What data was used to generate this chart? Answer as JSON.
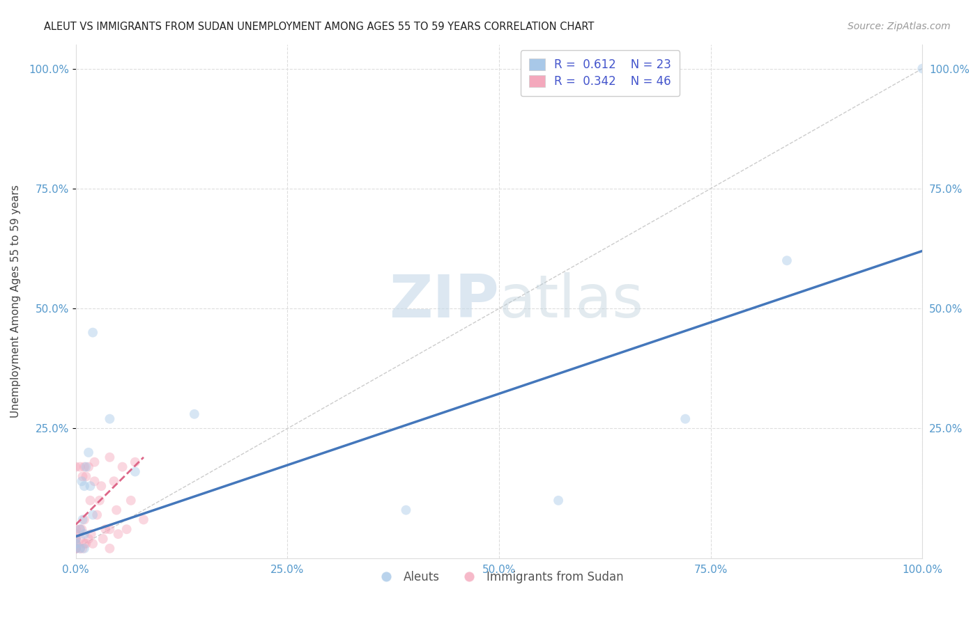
{
  "title": "ALEUT VS IMMIGRANTS FROM SUDAN UNEMPLOYMENT AMONG AGES 55 TO 59 YEARS CORRELATION CHART",
  "source": "Source: ZipAtlas.com",
  "ylabel": "Unemployment Among Ages 55 to 59 years",
  "aleut_R": 0.612,
  "aleut_N": 23,
  "sudan_R": 0.342,
  "sudan_N": 46,
  "aleut_color": "#a8c8e8",
  "sudan_color": "#f4a8bc",
  "aleut_line_color": "#4477bb",
  "sudan_line_color": "#dd6688",
  "diagonal_color": "#cccccc",
  "background_color": "#ffffff",
  "grid_color": "#dddddd",
  "axis_label_color": "#5599cc",
  "legend_text_color": "#4455cc",
  "watermark_color": "#dce8f0",
  "aleut_x": [
    0.0,
    0.0,
    0.0,
    0.005,
    0.005,
    0.007,
    0.008,
    0.01,
    0.01,
    0.01,
    0.012,
    0.015,
    0.017,
    0.02,
    0.02,
    0.04,
    0.07,
    0.14,
    0.39,
    0.57,
    0.72,
    0.84,
    1.0
  ],
  "aleut_y": [
    0.0,
    0.01,
    0.02,
    0.0,
    0.04,
    0.14,
    0.06,
    0.0,
    0.03,
    0.13,
    0.17,
    0.2,
    0.13,
    0.07,
    0.45,
    0.27,
    0.16,
    0.28,
    0.08,
    0.1,
    0.27,
    0.6,
    1.0
  ],
  "sudan_x": [
    0.0,
    0.0,
    0.0,
    0.0,
    0.0,
    0.0,
    0.0,
    0.0,
    0.0,
    0.0,
    0.0,
    0.005,
    0.005,
    0.005,
    0.005,
    0.007,
    0.008,
    0.008,
    0.01,
    0.01,
    0.01,
    0.012,
    0.012,
    0.015,
    0.015,
    0.017,
    0.018,
    0.02,
    0.022,
    0.022,
    0.025,
    0.028,
    0.03,
    0.032,
    0.035,
    0.04,
    0.04,
    0.04,
    0.045,
    0.048,
    0.05,
    0.055,
    0.06,
    0.065,
    0.07,
    0.08
  ],
  "sudan_y": [
    0.0,
    0.0,
    0.0,
    0.0,
    0.01,
    0.01,
    0.02,
    0.02,
    0.03,
    0.04,
    0.17,
    0.0,
    0.02,
    0.04,
    0.17,
    0.04,
    0.0,
    0.15,
    0.01,
    0.06,
    0.17,
    0.01,
    0.15,
    0.02,
    0.17,
    0.1,
    0.03,
    0.01,
    0.14,
    0.18,
    0.07,
    0.1,
    0.13,
    0.02,
    0.04,
    0.0,
    0.04,
    0.19,
    0.14,
    0.08,
    0.03,
    0.17,
    0.04,
    0.1,
    0.18,
    0.06
  ],
  "aleut_line_x0": 0.0,
  "aleut_line_y0": 0.025,
  "aleut_line_x1": 1.0,
  "aleut_line_y1": 0.62,
  "sudan_line_x0": 0.0,
  "sudan_line_y0": 0.05,
  "sudan_line_x1": 0.08,
  "sudan_line_y1": 0.19,
  "xlim": [
    0.0,
    1.0
  ],
  "ylim": [
    -0.02,
    1.05
  ],
  "xtick_labels": [
    "0.0%",
    "25.0%",
    "50.0%",
    "75.0%",
    "100.0%"
  ],
  "xtick_vals": [
    0.0,
    0.25,
    0.5,
    0.75,
    1.0
  ],
  "ytick_labels": [
    "25.0%",
    "50.0%",
    "75.0%",
    "100.0%"
  ],
  "ytick_vals": [
    0.25,
    0.5,
    0.75,
    1.0
  ],
  "marker_size": 100,
  "marker_alpha": 0.45,
  "bottom_legend_labels": [
    "Aleuts",
    "Immigrants from Sudan"
  ]
}
